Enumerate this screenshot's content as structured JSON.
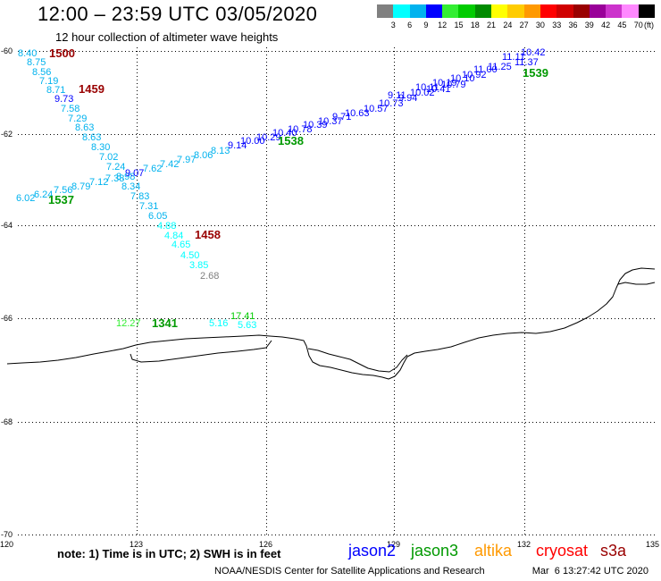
{
  "header": {
    "title": "12:00 – 23:59 UTC 03/05/2020",
    "subtitle": "12 hour collection of altimeter wave heights"
  },
  "colorbar": {
    "colors": [
      "#808080",
      "#00ffff",
      "#00b2ee",
      "#0000ff",
      "#33ee33",
      "#00cc00",
      "#008b00",
      "#ffff00",
      "#ffcc00",
      "#ff9900",
      "#ff0000",
      "#d00000",
      "#990000",
      "#990099",
      "#cc33cc",
      "#ff88ff",
      "#000000"
    ],
    "labels": [
      "3",
      "6",
      "9",
      "12",
      "15",
      "18",
      "21",
      "24",
      "27",
      "30",
      "33",
      "36",
      "39",
      "42",
      "45",
      "70"
    ],
    "unit": "(ft)"
  },
  "map": {
    "lat_labels": [
      "-60",
      "-62",
      "-64",
      "-66",
      "-68",
      "-70"
    ],
    "lon_labels": [
      "120",
      "123",
      "126",
      "129",
      "132",
      "135"
    ],
    "wave_heights": [
      "8.40",
      "8.75",
      "8.56",
      "7.19",
      "8.71",
      "9.73",
      "7.58",
      "7.29",
      "8.63",
      "8.63",
      "8.30",
      "7.02",
      "7.24",
      "8.98",
      "8.34",
      "7.83",
      "7.31",
      "6.05",
      "4.88",
      "4.84",
      "4.65",
      "4.50",
      "3.85",
      "2.68",
      "6.02",
      "6.24",
      "7.56",
      "8.79",
      "7.12",
      "7.38",
      "9.07",
      "7.62",
      "7.42",
      "7.97",
      "8.06",
      "8.13",
      "9.14",
      "10.00",
      "10.29",
      "10.40",
      "10.78",
      "10.39",
      "10.37",
      "9.71",
      "10.63",
      "10.57",
      "10.73",
      "9.11",
      "9.94",
      "10.02",
      "10.11",
      "10.41",
      "10.19",
      "10.79",
      "10.10",
      "10.92",
      "11.00",
      "11.25",
      "11.11",
      "11.37",
      "10.42",
      "12.27",
      "5.16",
      "17.41",
      "5.63"
    ]
  },
  "legend": {
    "note": "note: 1) Time is in UTC; 2) SWH is in feet",
    "missions": [
      {
        "name": "jason2",
        "color": "#0000ff"
      },
      {
        "name": "jason3",
        "color": "#009900",
        "tracks": [
          "1537",
          "1538",
          "1539",
          "1341"
        ]
      },
      {
        "name": "altika",
        "color": "#ff9900"
      },
      {
        "name": "cryosat",
        "color": "#ff0000"
      },
      {
        "name": "s3a",
        "color": "#990000",
        "tracks": [
          "1500",
          "1459",
          "1458"
        ]
      }
    ]
  },
  "footer": {
    "credit": "NOAA/NESDIS Center for Satellite Applications and Research",
    "timestamp": "Mar  6 13:27:42 UTC 2020"
  }
}
